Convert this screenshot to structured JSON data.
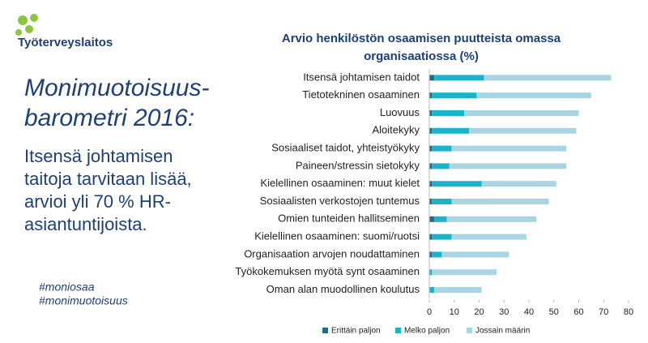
{
  "logo": {
    "name": "Työterveyslaitos"
  },
  "heading": [
    "Monimuotoisuus-",
    "barometri 2016:"
  ],
  "body": [
    "Itsensä johtamisen",
    "taitoja tarvitaan lisää,",
    "arvioi yli 70 % HR-",
    "asiantuntijoista."
  ],
  "hashtags": [
    "#moniosaa",
    "#monimuotoisuus"
  ],
  "chart_data": {
    "type": "stacked-bar-horizontal",
    "title": [
      "Arvio henkilöstön osaamisen puutteista omassa",
      "organisaatiossa (%)"
    ],
    "categories": [
      "Itsensä johtamisen taidot",
      "Tietotekninen osaaminen",
      "Luovuus",
      "Aloitekyky",
      "Sosiaaliset taidot, yhteistyökyky",
      "Paineen/stressin sietokyky",
      "Kielellinen osaaminen: muut kielet",
      "Sosiaalisten verkostojen tuntemus",
      "Omien tunteiden hallitseminen",
      "Kielellinen osaaminen: suomi/ruotsi",
      "Organisaation arvojen noudattaminen",
      "Työkokemuksen myötä synt osaaminen",
      "Oman alan muodollinen koulutus"
    ],
    "series": [
      {
        "name": "Erittäin paljon",
        "color": "#1b6f8a",
        "values": [
          2,
          1,
          1,
          1,
          1,
          1,
          1,
          1,
          2,
          1,
          1,
          0,
          0
        ]
      },
      {
        "name": "Melko paljon",
        "color": "#1ab3c9",
        "values": [
          20,
          18,
          13,
          15,
          8,
          7,
          20,
          8,
          5,
          8,
          4,
          1,
          2
        ]
      },
      {
        "name": "Jossain määrin",
        "color": "#a9d4e2",
        "values": [
          51,
          46,
          46,
          43,
          46,
          47,
          30,
          39,
          36,
          30,
          27,
          26,
          19
        ]
      }
    ],
    "xlim": [
      0,
      80
    ],
    "xticks": [
      0,
      10,
      20,
      30,
      40,
      50,
      60,
      70,
      80
    ]
  }
}
